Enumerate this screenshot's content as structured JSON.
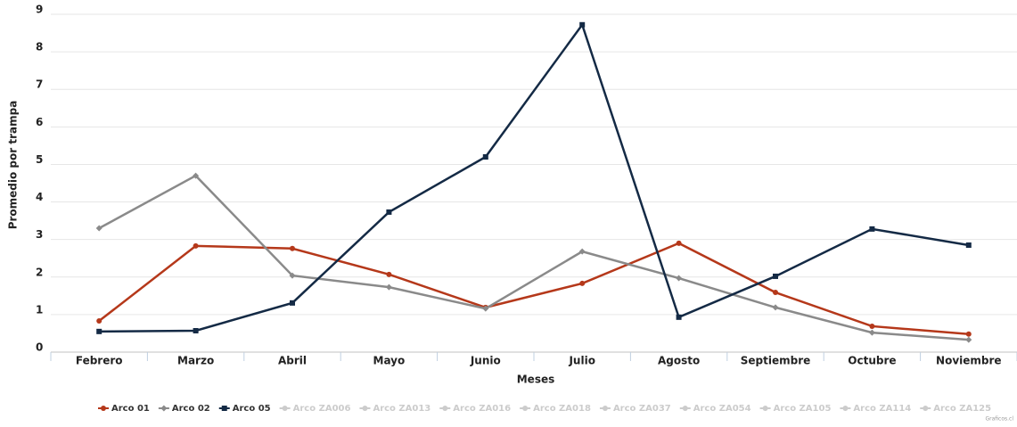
{
  "chart_data": {
    "type": "line",
    "y_label": "Promedio por trampa",
    "x_label": "Meses",
    "credits": "Graficos.cl",
    "categories": [
      "Febrero",
      "Marzo",
      "Abril",
      "Mayo",
      "Junio",
      "Julio",
      "Agosto",
      "Septiembre",
      "Octubre",
      "Noviembre"
    ],
    "ylim": [
      0,
      9
    ],
    "yticks": [
      0,
      1,
      2,
      3,
      4,
      5,
      6,
      7,
      8,
      9
    ],
    "grid": true,
    "legend": "bottom",
    "hidden_color": "#cccccc",
    "series": [
      {
        "name": "Arco 01",
        "color": "#b5381a",
        "marker": "circle",
        "visible": true,
        "values": [
          0.83,
          2.83,
          2.76,
          2.07,
          1.19,
          1.83,
          2.9,
          1.59,
          0.69,
          0.48
        ]
      },
      {
        "name": "Arco 02",
        "color": "#8a8a8a",
        "marker": "diamond",
        "visible": true,
        "values": [
          3.3,
          4.7,
          2.04,
          1.73,
          1.16,
          2.68,
          1.97,
          1.19,
          0.52,
          0.33
        ]
      },
      {
        "name": "Arco 05",
        "color": "#142a45",
        "marker": "square",
        "visible": true,
        "values": [
          0.55,
          0.57,
          1.31,
          3.73,
          5.2,
          8.72,
          0.93,
          2.02,
          3.28,
          2.85
        ]
      },
      {
        "name": "Arco ZA006",
        "visible": false
      },
      {
        "name": "Arco ZA013",
        "visible": false
      },
      {
        "name": "Arco ZA016",
        "visible": false
      },
      {
        "name": "Arco ZA018",
        "visible": false
      },
      {
        "name": "Arco ZA037",
        "visible": false
      },
      {
        "name": "Arco ZA054",
        "visible": false
      },
      {
        "name": "Arco ZA105",
        "visible": false
      },
      {
        "name": "Arco ZA114",
        "visible": false
      },
      {
        "name": "Arco ZA125",
        "visible": false
      }
    ]
  }
}
